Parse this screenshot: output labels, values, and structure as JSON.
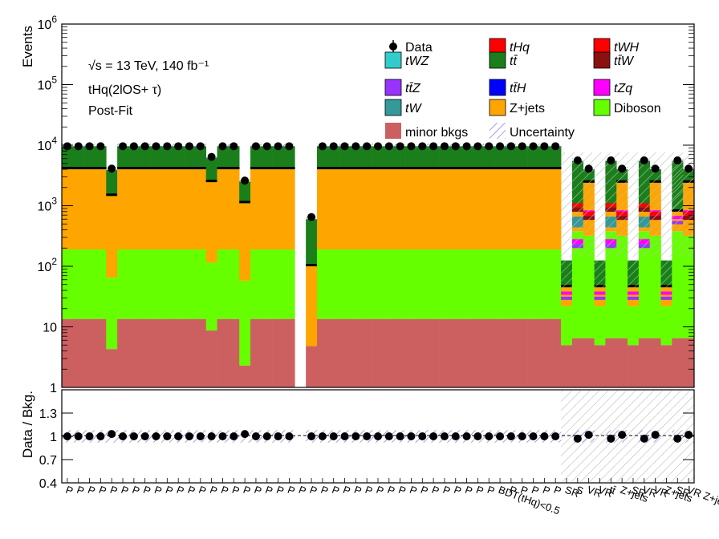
{
  "chart_data": {
    "type": "bar",
    "stacked": true,
    "ylabel_top": "Events",
    "ylabel_bottom": "Data / Bkg.",
    "y_scale_top": "log",
    "ylim_top": [
      1,
      1000000
    ],
    "ylim_bottom": [
      0.4,
      1.6
    ],
    "y_ticks_top": [
      "1",
      "10",
      "10^2",
      "10^3",
      "10^4",
      "10^5",
      "10^6"
    ],
    "y_ticks_bottom": [
      "0.4",
      "0.7",
      "1",
      "1.3"
    ],
    "annotations": [
      "√s = 13 TeV, 140 fb⁻¹",
      "tHq(2lOS+ τ)",
      "Post-Fit"
    ],
    "legend_position": "top-right",
    "legend": [
      {
        "name": "Data",
        "kind": "marker",
        "color": "#000000"
      },
      {
        "name": "tHq",
        "kind": "box",
        "color": "#ff0000"
      },
      {
        "name": "tWH",
        "kind": "box",
        "color": "#ff0000"
      },
      {
        "name": "tWZ",
        "kind": "box",
        "color": "#33cccc"
      },
      {
        "name": "tt̄",
        "kind": "box",
        "color": "#1a7f1a"
      },
      {
        "name": "tt̄W",
        "kind": "box",
        "color": "#8b1010"
      },
      {
        "name": "tt̄Z",
        "kind": "box",
        "color": "#9933ff"
      },
      {
        "name": "tt̄H",
        "kind": "box",
        "color": "#0000ff"
      },
      {
        "name": "tZq",
        "kind": "box",
        "color": "#ff00ff"
      },
      {
        "name": "tW",
        "kind": "box",
        "color": "#339999"
      },
      {
        "name": "Z+jets",
        "kind": "box",
        "color": "#ffa500"
      },
      {
        "name": "Diboson",
        "kind": "box",
        "color": "#66ff00"
      },
      {
        "name": "minor bkgs",
        "kind": "box",
        "color": "#cc6060"
      },
      {
        "name": "Uncertainty",
        "kind": "hatch",
        "color": "#5555cc"
      }
    ],
    "series_colors": {
      "minor_bkgs": "#cc6060",
      "diboson": "#66ff00",
      "zjets": "#ffa500",
      "tw": "#339999",
      "tzq": "#ff00ff",
      "ttz": "#9933ff",
      "tth": "#0000ff",
      "ttw": "#8b1010",
      "tt": "#1a7f1a",
      "thq": "#ff0000"
    },
    "bins": [
      {
        "label": "P",
        "minor": 13.5,
        "dib": 190,
        "zj": 4000,
        "tt": 9600,
        "data": 9600,
        "ratio": 1.0
      },
      {
        "label": "P",
        "minor": 13.5,
        "dib": 190,
        "zj": 4000,
        "tt": 9600,
        "data": 9600,
        "ratio": 1.0
      },
      {
        "label": "P",
        "minor": 13.5,
        "dib": 190,
        "zj": 4000,
        "tt": 9600,
        "data": 9600,
        "ratio": 1.0
      },
      {
        "label": "P",
        "minor": 13.5,
        "dib": 190,
        "zj": 4000,
        "tt": 9600,
        "data": 9600,
        "ratio": 1.0
      },
      {
        "label": "P",
        "minor": 4.3,
        "dib": 65,
        "zj": 1450,
        "tt": 3900,
        "data": 4100,
        "ratio": 1.03
      },
      {
        "label": "P",
        "minor": 13.5,
        "dib": 190,
        "zj": 4000,
        "tt": 9600,
        "data": 9600,
        "ratio": 1.0
      },
      {
        "label": "P",
        "minor": 13.5,
        "dib": 190,
        "zj": 4000,
        "tt": 9600,
        "data": 9600,
        "ratio": 1.0
      },
      {
        "label": "P",
        "minor": 13.5,
        "dib": 190,
        "zj": 4000,
        "tt": 9600,
        "data": 9600,
        "ratio": 1.0
      },
      {
        "label": "P",
        "minor": 13.5,
        "dib": 190,
        "zj": 4000,
        "tt": 9600,
        "data": 9600,
        "ratio": 1.0
      },
      {
        "label": "P",
        "minor": 13.5,
        "dib": 190,
        "zj": 4000,
        "tt": 9600,
        "data": 9600,
        "ratio": 1.0
      },
      {
        "label": "P",
        "minor": 13.5,
        "dib": 190,
        "zj": 4000,
        "tt": 9600,
        "data": 9600,
        "ratio": 1.0
      },
      {
        "label": "P",
        "minor": 13.5,
        "dib": 190,
        "zj": 4000,
        "tt": 9600,
        "data": 9600,
        "ratio": 1.0
      },
      {
        "label": "P",
        "minor": 13.5,
        "dib": 190,
        "zj": 4000,
        "tt": 9600,
        "data": 9600,
        "ratio": 1.0
      },
      {
        "label": "P",
        "minor": 8.7,
        "dib": 115,
        "zj": 2450,
        "tt": 6200,
        "data": 6400,
        "ratio": 1.0
      },
      {
        "label": "P",
        "minor": 13.5,
        "dib": 190,
        "zj": 4000,
        "tt": 9600,
        "data": 9600,
        "ratio": 1.0
      },
      {
        "label": "P",
        "minor": 13.5,
        "dib": 190,
        "zj": 4000,
        "tt": 9600,
        "data": 9600,
        "ratio": 1.0
      },
      {
        "label": "P",
        "minor": 2.3,
        "dib": 58,
        "zj": 1100,
        "tt": 2500,
        "data": 2600,
        "ratio": 1.03
      },
      {
        "label": "P",
        "minor": 13.5,
        "dib": 190,
        "zj": 4000,
        "tt": 9600,
        "data": 9600,
        "ratio": 1.0
      },
      {
        "label": "P",
        "minor": 13.5,
        "dib": 190,
        "zj": 4000,
        "tt": 9600,
        "data": 9600,
        "ratio": 1.0
      },
      {
        "label": "P",
        "minor": 13.5,
        "dib": 190,
        "zj": 4000,
        "tt": 9600,
        "data": 9600,
        "ratio": 1.0
      },
      {
        "label": "P",
        "minor": 13.5,
        "dib": 190,
        "zj": 4000,
        "tt": 9600,
        "data": 9600,
        "ratio": 1.0
      },
      {
        "label": "P",
        "minor": 0,
        "dib": 0,
        "zj": 0,
        "tt": 0,
        "data": null,
        "ratio": null
      },
      {
        "label": "P",
        "minor": 4.8,
        "dib": 4.8,
        "zj": 100,
        "tt": 600,
        "data": 650,
        "ratio": 1.0
      },
      {
        "label": "P",
        "minor": 13.5,
        "dib": 190,
        "zj": 4000,
        "tt": 9600,
        "data": 9600,
        "ratio": 1.0
      },
      {
        "label": "P",
        "minor": 13.5,
        "dib": 190,
        "zj": 4000,
        "tt": 9600,
        "data": 9600,
        "ratio": 1.0
      },
      {
        "label": "P",
        "minor": 13.5,
        "dib": 190,
        "zj": 4000,
        "tt": 9600,
        "data": 9600,
        "ratio": 1.0
      },
      {
        "label": "P",
        "minor": 13.5,
        "dib": 190,
        "zj": 4000,
        "tt": 9600,
        "data": 9600,
        "ratio": 1.0
      },
      {
        "label": "P",
        "minor": 13.5,
        "dib": 190,
        "zj": 4000,
        "tt": 9600,
        "data": 9600,
        "ratio": 1.0
      },
      {
        "label": "P",
        "minor": 13.5,
        "dib": 190,
        "zj": 4000,
        "tt": 9600,
        "data": 9600,
        "ratio": 1.0
      },
      {
        "label": "P",
        "minor": 13.5,
        "dib": 190,
        "zj": 4000,
        "tt": 9600,
        "data": 9600,
        "ratio": 1.0
      },
      {
        "label": "P",
        "minor": 13.5,
        "dib": 190,
        "zj": 4000,
        "tt": 9600,
        "data": 9600,
        "ratio": 1.0
      },
      {
        "label": "P",
        "minor": 13.5,
        "dib": 190,
        "zj": 4000,
        "tt": 9600,
        "data": 9600,
        "ratio": 1.0
      },
      {
        "label": "P",
        "minor": 13.5,
        "dib": 190,
        "zj": 4000,
        "tt": 9600,
        "data": 9600,
        "ratio": 1.0
      },
      {
        "label": "P",
        "minor": 13.5,
        "dib": 190,
        "zj": 4000,
        "tt": 9600,
        "data": 9600,
        "ratio": 1.0
      },
      {
        "label": "P",
        "minor": 13.5,
        "dib": 190,
        "zj": 4000,
        "tt": 9600,
        "data": 9600,
        "ratio": 1.0
      },
      {
        "label": "P",
        "minor": 13.5,
        "dib": 190,
        "zj": 4000,
        "tt": 9600,
        "data": 9600,
        "ratio": 1.0
      },
      {
        "label": "P",
        "minor": 13.5,
        "dib": 190,
        "zj": 4000,
        "tt": 9600,
        "data": 9600,
        "ratio": 1.0
      },
      {
        "label": "P",
        "minor": 13.5,
        "dib": 190,
        "zj": 4000,
        "tt": 9600,
        "data": 9600,
        "ratio": 1.0
      },
      {
        "label": "P",
        "minor": 13.5,
        "dib": 190,
        "zj": 4000,
        "tt": 9600,
        "data": 9600,
        "ratio": 1.0
      },
      {
        "label": "BDT(tHq)<0.5",
        "minor": 13.5,
        "dib": 190,
        "zj": 4000,
        "tt": 9600,
        "data": 9600,
        "ratio": 1.0
      },
      {
        "label": "P",
        "minor": 13.5,
        "dib": 190,
        "zj": 4000,
        "tt": 9600,
        "data": 9600,
        "ratio": 1.0
      },
      {
        "label": "P",
        "minor": 13.5,
        "dib": 190,
        "zj": 4000,
        "tt": 9600,
        "data": 9600,
        "ratio": 1.0
      },
      {
        "label": "P",
        "minor": 13.5,
        "dib": 190,
        "zj": 4000,
        "tt": 9600,
        "data": 9600,
        "ratio": 1.0
      },
      {
        "label": "P",
        "minor": 13.5,
        "dib": 190,
        "zj": 4000,
        "tt": 9600,
        "data": 9600,
        "ratio": 1.0
      },
      {
        "label": "P",
        "minor": 13.5,
        "dib": 190,
        "zj": 4000,
        "tt": 9600,
        "data": 9600,
        "ratio": 1.0
      },
      {
        "label": "SR",
        "minor": 5,
        "dib": 22,
        "zj": 45,
        "tt": 125,
        "data": null,
        "ratio": null
      },
      {
        "label": "S",
        "minor": 6.5,
        "dib": 380,
        "zj": 800,
        "tt": 5500,
        "data": 5600,
        "ratio": 0.97
      },
      {
        "label": "VR",
        "minor": 6.5,
        "dib": 320,
        "zj": 2400,
        "tt": 4000,
        "data": 4100,
        "ratio": 1.02
      },
      {
        "label": "VR",
        "minor": 5,
        "dib": 22,
        "zj": 45,
        "tt": 125,
        "data": null,
        "ratio": null
      },
      {
        "label": "tt̄",
        "minor": 6.5,
        "dib": 380,
        "zj": 800,
        "tt": 5500,
        "data": 5600,
        "ratio": 0.97
      },
      {
        "label": "Z+jets",
        "minor": 6.5,
        "dib": 320,
        "zj": 2400,
        "tt": 4000,
        "data": 4100,
        "ratio": 1.02
      },
      {
        "label": "SR",
        "minor": 5,
        "dib": 22,
        "zj": 45,
        "tt": 125,
        "data": null,
        "ratio": null
      },
      {
        "label": "VR",
        "minor": 6.5,
        "dib": 380,
        "zj": 800,
        "tt": 5500,
        "data": 5600,
        "ratio": 0.97
      },
      {
        "label": "VR",
        "minor": 6.5,
        "dib": 320,
        "zj": 2400,
        "tt": 4000,
        "data": 4100,
        "ratio": 1.02
      },
      {
        "label": "Z+jets",
        "minor": 5,
        "dib": 22,
        "zj": 45,
        "tt": 125,
        "data": null,
        "ratio": null
      },
      {
        "label": "SR",
        "minor": 6.5,
        "dib": 380,
        "zj": 800,
        "tt": 5500,
        "data": 5600,
        "ratio": 0.97
      },
      {
        "label": "VR Z+jets",
        "minor": 6.5,
        "dib": 320,
        "zj": 2400,
        "tt": 4000,
        "data": 4100,
        "ratio": 1.02
      }
    ]
  }
}
